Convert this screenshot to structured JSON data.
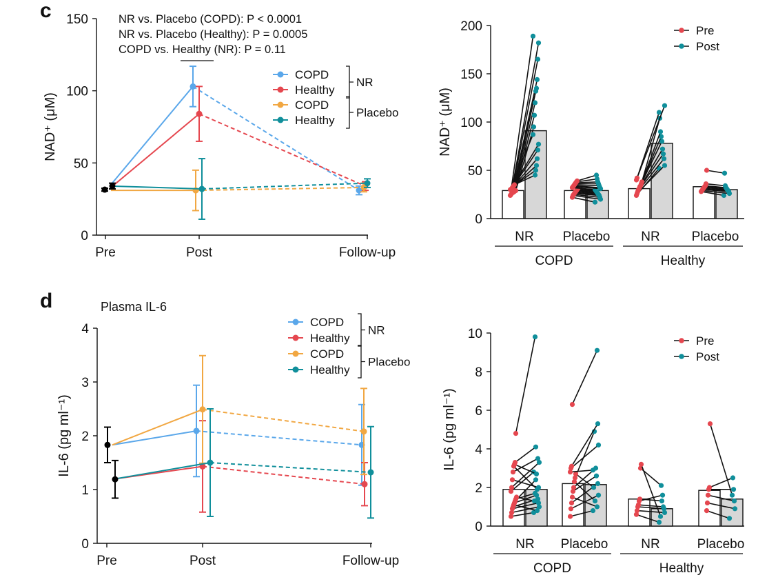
{
  "panels": {
    "c_letter": "c",
    "d_letter": "d",
    "d_subtitle": "Plasma IL-6"
  },
  "colors": {
    "copd_nr": "#5aa7ea",
    "healthy_nr": "#e5474f",
    "copd_placebo": "#f1a742",
    "healthy_placebo": "#108f9b",
    "pre": "#e5474f",
    "post": "#108f9b",
    "bar_pre": "#ffffff",
    "bar_post": "#d7d7d7",
    "baseline": "#000000"
  },
  "chart_data": [
    {
      "id": "c-left",
      "type": "line",
      "ylabel": "NAD⁺ (μM)",
      "xlabel": "",
      "categories": [
        "Pre",
        "Post",
        "Follow-up"
      ],
      "ylim": [
        0,
        150
      ],
      "yticks": [
        0,
        50,
        100,
        150
      ],
      "annotations": [
        "NR vs. Placebo (COPD): P < 0.0001",
        "NR vs. Placebo (Healthy): P = 0.0005",
        "COPD vs. Healthy (NR): P = 0.11"
      ],
      "legend": {
        "entries": [
          "COPD",
          "Healthy",
          "COPD",
          "Healthy"
        ],
        "groups": [
          "NR",
          "Placebo"
        ],
        "position": "top-right"
      },
      "baseline": {
        "pre": [
          31.5,
          34
        ],
        "err": [
          1,
          2
        ]
      },
      "series": [
        {
          "name": "COPD",
          "group": "NR",
          "color_key": "copd_nr",
          "values": [
            35,
            103,
            31
          ],
          "err": [
            2,
            14,
            3
          ]
        },
        {
          "name": "Healthy",
          "group": "NR",
          "color_key": "healthy_nr",
          "values": [
            33,
            84,
            34
          ],
          "err": [
            2,
            19,
            3
          ]
        },
        {
          "name": "COPD",
          "group": "Placebo",
          "color_key": "copd_placebo",
          "values": [
            31,
            31,
            33
          ],
          "err": [
            1,
            14,
            3
          ]
        },
        {
          "name": "Healthy",
          "group": "Placebo",
          "color_key": "healthy_placebo",
          "values": [
            34,
            32,
            36
          ],
          "err": [
            1,
            21,
            3
          ]
        }
      ]
    },
    {
      "id": "c-right",
      "type": "bar",
      "ylabel": "NAD⁺ (μM)",
      "ylim": [
        0,
        200
      ],
      "yticks": [
        0,
        50,
        100,
        150,
        200
      ],
      "groups": [
        "NR",
        "Placebo",
        "NR",
        "Placebo"
      ],
      "supergroups": [
        "COPD",
        "Healthy"
      ],
      "legend": {
        "entries": [
          "Pre",
          "Post"
        ],
        "position": "top-right"
      },
      "bars": [
        {
          "pre": 29,
          "post": 91
        },
        {
          "pre": 29,
          "post": 29
        },
        {
          "pre": 31,
          "post": 78
        },
        {
          "pre": 33,
          "post": 30
        }
      ],
      "paired": [
        {
          "pre": [
            24,
            25,
            26,
            27,
            27,
            28,
            28,
            29,
            29,
            30,
            30,
            31,
            32,
            33,
            34,
            35
          ],
          "post": [
            189,
            182,
            165,
            144,
            135,
            132,
            120,
            107,
            95,
            87,
            77,
            71,
            62,
            55,
            50,
            45
          ]
        },
        {
          "pre": [
            22,
            24,
            25,
            26,
            27,
            28,
            29,
            30,
            31,
            32,
            33,
            34,
            35,
            36,
            37,
            38,
            39
          ],
          "post": [
            17,
            20,
            22,
            24,
            25,
            26,
            27,
            28,
            29,
            30,
            31,
            32,
            34,
            36,
            38,
            41,
            45
          ]
        },
        {
          "pre": [
            24,
            26,
            28,
            30,
            31,
            33,
            34,
            36,
            38,
            40,
            42
          ],
          "post": [
            52,
            55,
            62,
            67,
            72,
            80,
            85,
            90,
            104,
            110,
            117
          ]
        },
        {
          "pre": [
            28,
            29,
            30,
            31,
            32,
            33,
            34,
            36,
            50
          ],
          "post": [
            24,
            26,
            28,
            29,
            30,
            31,
            32,
            34,
            47
          ]
        }
      ]
    },
    {
      "id": "d-left",
      "type": "line",
      "ylabel": "IL-6 (pg ml⁻¹)",
      "xlabel": "",
      "categories": [
        "Pre",
        "Post",
        "Follow-up"
      ],
      "ylim": [
        0,
        4
      ],
      "yticks": [
        0,
        1,
        2,
        3,
        4
      ],
      "legend": {
        "entries": [
          "COPD",
          "Healthy",
          "COPD",
          "Healthy"
        ],
        "groups": [
          "NR",
          "Placebo"
        ],
        "position": "top-right"
      },
      "baseline": {
        "pre": [
          1.83,
          1.19
        ],
        "err": [
          0.33,
          0.35
        ]
      },
      "series": [
        {
          "name": "COPD",
          "group": "NR",
          "color_key": "copd_nr",
          "values": [
            1.83,
            2.09,
            1.83
          ],
          "err": [
            0.02,
            0.85,
            0.75
          ]
        },
        {
          "name": "Healthy",
          "group": "NR",
          "color_key": "healthy_nr",
          "values": [
            1.19,
            1.43,
            1.1
          ],
          "err": [
            0.02,
            0.85,
            0.4
          ]
        },
        {
          "name": "COPD",
          "group": "Placebo",
          "color_key": "copd_placebo",
          "values": [
            1.83,
            2.49,
            2.08
          ],
          "err": [
            0.02,
            1.0,
            0.8
          ]
        },
        {
          "name": "Healthy",
          "group": "Placebo",
          "color_key": "healthy_placebo",
          "values": [
            1.19,
            1.5,
            1.32
          ],
          "err": [
            0.02,
            1.0,
            0.85
          ]
        }
      ]
    },
    {
      "id": "d-right",
      "type": "bar",
      "ylabel": "IL-6 (pg ml⁻¹)",
      "ylim": [
        0,
        10
      ],
      "yticks": [
        0,
        2,
        4,
        6,
        8,
        10
      ],
      "groups": [
        "NR",
        "Placebo",
        "NR",
        "Placebo"
      ],
      "supergroups": [
        "COPD",
        "Healthy"
      ],
      "legend": {
        "entries": [
          "Pre",
          "Post"
        ],
        "position": "top-right"
      },
      "bars": [
        {
          "pre": 1.9,
          "post": 1.9
        },
        {
          "pre": 2.2,
          "post": 2.15
        },
        {
          "pre": 1.4,
          "post": 0.9
        },
        {
          "pre": 1.85,
          "post": 1.4
        }
      ],
      "paired": [
        {
          "pre": [
            0.5,
            0.7,
            0.9,
            1.0,
            1.1,
            1.2,
            1.3,
            1.4,
            1.5,
            1.8,
            2.0,
            2.4,
            2.8,
            3.1,
            3.2,
            3.3,
            4.8
          ],
          "post": [
            0.7,
            1.0,
            1.2,
            1.4,
            0.8,
            1.6,
            2.4,
            1.7,
            1.3,
            2.8,
            3.3,
            2.0,
            3.5,
            1.9,
            2.7,
            4.1,
            9.8
          ]
        },
        {
          "pre": [
            0.5,
            0.9,
            1.2,
            1.5,
            1.8,
            2.0,
            2.3,
            2.5,
            2.7,
            2.8,
            3.0,
            3.1,
            6.3
          ],
          "post": [
            0.8,
            1.6,
            2.2,
            1.0,
            2.6,
            3.0,
            1.3,
            4.9,
            2.0,
            2.9,
            4.2,
            5.3,
            9.1
          ]
        },
        {
          "pre": [
            0.6,
            0.8,
            1.0,
            1.1,
            1.3,
            1.4,
            3.0,
            3.2
          ],
          "post": [
            0.2,
            0.7,
            0.9,
            1.0,
            1.6,
            1.3,
            2.1,
            0.5
          ]
        },
        {
          "pre": [
            0.8,
            1.2,
            1.6,
            1.9,
            2.0,
            5.3
          ],
          "post": [
            0.4,
            0.9,
            1.3,
            1.9,
            2.5,
            1.6
          ]
        }
      ]
    }
  ]
}
